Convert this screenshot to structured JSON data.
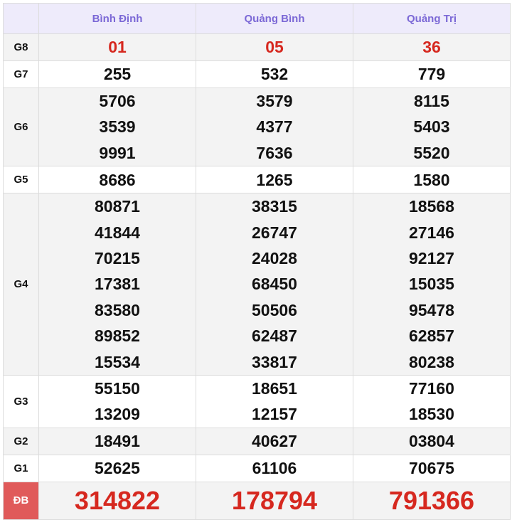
{
  "header": {
    "provinces": [
      "Bình Định",
      "Quảng Bình",
      "Quảng Trị"
    ]
  },
  "rows": [
    {
      "label": "G8",
      "values": [
        [
          "01"
        ],
        [
          "05"
        ],
        [
          "36"
        ]
      ]
    },
    {
      "label": "G7",
      "values": [
        [
          "255"
        ],
        [
          "532"
        ],
        [
          "779"
        ]
      ]
    },
    {
      "label": "G6",
      "values": [
        [
          "5706",
          "3539",
          "9991"
        ],
        [
          "3579",
          "4377",
          "7636"
        ],
        [
          "8115",
          "5403",
          "5520"
        ]
      ]
    },
    {
      "label": "G5",
      "values": [
        [
          "8686"
        ],
        [
          "1265"
        ],
        [
          "1580"
        ]
      ]
    },
    {
      "label": "G4",
      "values": [
        [
          "80871",
          "41844",
          "70215",
          "17381",
          "83580",
          "89852",
          "15534"
        ],
        [
          "38315",
          "26747",
          "24028",
          "68450",
          "50506",
          "62487",
          "33817"
        ],
        [
          "18568",
          "27146",
          "92127",
          "15035",
          "95478",
          "62857",
          "80238"
        ]
      ]
    },
    {
      "label": "G3",
      "values": [
        [
          "55150",
          "13209"
        ],
        [
          "18651",
          "12157"
        ],
        [
          "77160",
          "18530"
        ]
      ]
    },
    {
      "label": "G2",
      "values": [
        [
          "18491"
        ],
        [
          "40627"
        ],
        [
          "03804"
        ]
      ]
    },
    {
      "label": "G1",
      "values": [
        [
          "52625"
        ],
        [
          "61106"
        ],
        [
          "70675"
        ]
      ]
    },
    {
      "label": "ĐB",
      "values": [
        [
          "314822"
        ],
        [
          "178794"
        ],
        [
          "791366"
        ]
      ]
    }
  ],
  "colors": {
    "header_text": "#7b68d6",
    "prize_red": "#d6281f",
    "special_label_bg": "#e05a5a"
  }
}
